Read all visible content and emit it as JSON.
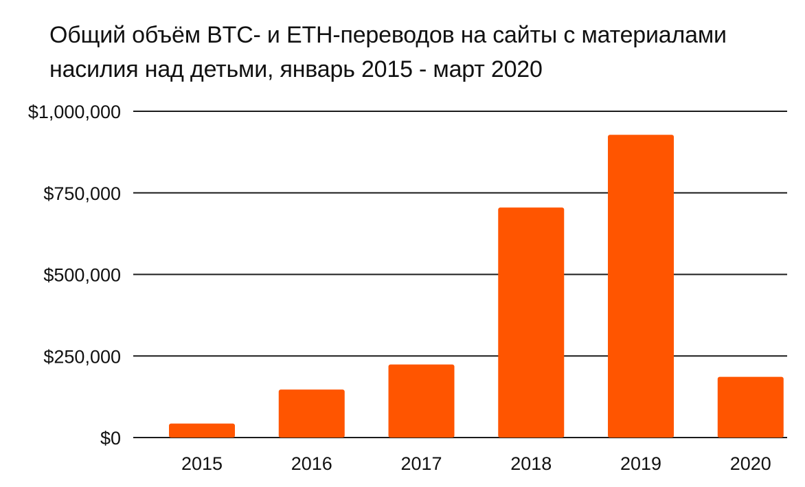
{
  "chart_data": {
    "type": "bar",
    "title": "Общий объём BTC- и ETH-переводов на сайты с материалами насилия над детьми, январь 2015 - март 2020",
    "categories": [
      "2015",
      "2016",
      "2017",
      "2018",
      "2019",
      "2020"
    ],
    "values": [
      43000,
      147000,
      224000,
      705000,
      928000,
      186000
    ],
    "xlabel": "",
    "ylabel": "",
    "ylim": [
      0,
      1000000
    ],
    "yticks": [
      0,
      250000,
      500000,
      750000,
      1000000
    ],
    "ytick_labels": [
      "$0",
      "$250,000",
      "$500,000",
      "$750,000",
      "$1,000,000"
    ],
    "grid": true,
    "legend": "none",
    "bar_color": "#ff5500"
  }
}
